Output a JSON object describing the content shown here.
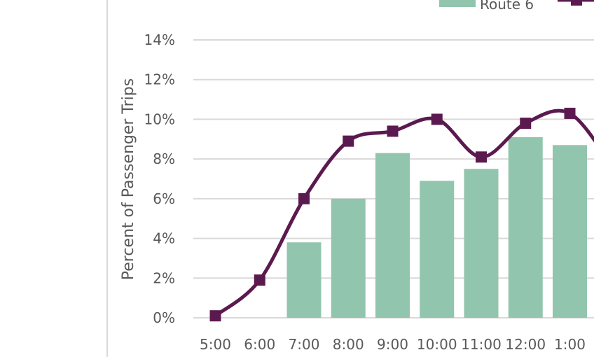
{
  "chart_data": {
    "type": "bar",
    "ylabel": "Percent of Passenger Trips",
    "xlabel": "",
    "ylim": [
      0,
      14
    ],
    "y_ticks": [
      "0%",
      "2%",
      "4%",
      "6%",
      "8%",
      "10%",
      "12%",
      "14%"
    ],
    "y_tick_values": [
      0,
      2,
      4,
      6,
      8,
      10,
      12,
      14
    ],
    "grid": true,
    "legend_position": "top-right",
    "categories": [
      "5:00",
      "6:00",
      "7:00",
      "8:00",
      "9:00",
      "10:00",
      "11:00",
      "12:00",
      "1:00"
    ],
    "series": [
      {
        "name": "Route 6",
        "kind": "bar",
        "color": "#92c5ad",
        "values": [
          null,
          null,
          3.8,
          6.0,
          8.3,
          6.9,
          7.5,
          9.1,
          8.7
        ]
      },
      {
        "name": "",
        "kind": "line",
        "color": "#5b1a4f",
        "marker": "square",
        "values": [
          0.1,
          1.9,
          6.0,
          8.9,
          9.4,
          10.0,
          8.1,
          9.8,
          10.3
        ]
      }
    ]
  }
}
